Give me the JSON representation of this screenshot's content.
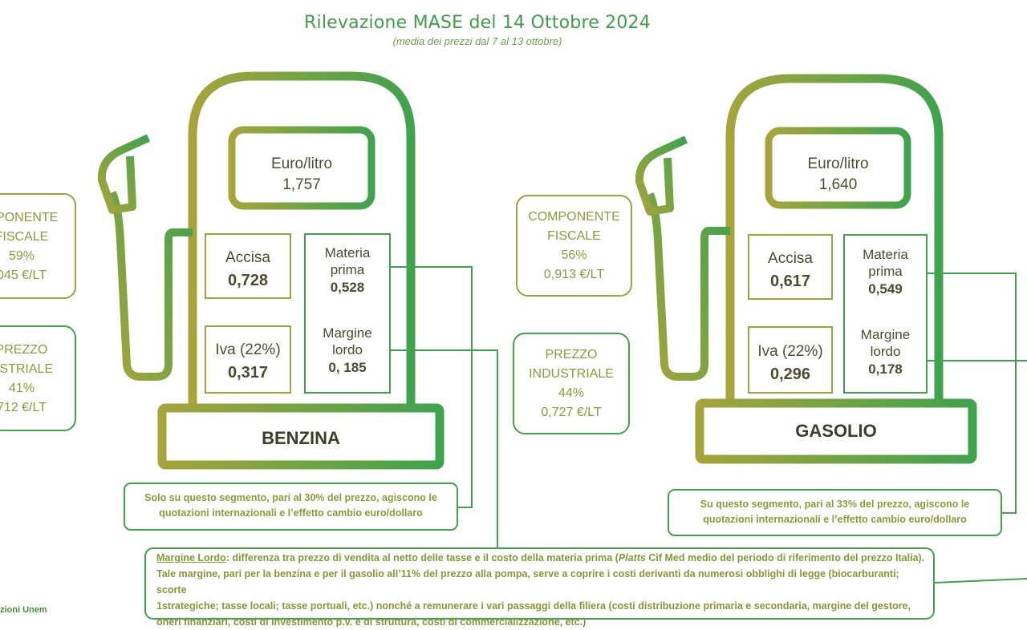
{
  "header": {
    "title": "Rilevazione MASE del 14 Ottobre 2024",
    "subtitle": "(media dei prezzi dal 7 al 13 ottobre)"
  },
  "colors": {
    "green": "#3fa34d",
    "olive": "#9aa53a",
    "text": "#4d4d2e"
  },
  "benzina": {
    "name": "BENZINA",
    "unit_label": "Euro/litro",
    "price": "1,757",
    "accisa_label": "Accisa",
    "accisa_value": "0,728",
    "iva_label": "Iva (22%)",
    "iva_value": "0,317",
    "materia_label_1": "Materia",
    "materia_label_2": "prima",
    "materia_value": "0,528",
    "margine_label_1": "Margine",
    "margine_label_2": "lordo",
    "margine_value": "0, 185",
    "fiscale_line1": "MPONENTE",
    "fiscale_line2": "FISCALE",
    "fiscale_pct": "59%",
    "fiscale_eur": "045 €/LT",
    "industriale_line1": "PREZZO",
    "industriale_line2": "USTRIALE",
    "industriale_pct": "41%",
    "industriale_eur": "712 €/LT",
    "note_line1": "Solo su questo segmento, pari al 30% del prezzo, agiscono le",
    "note_line2": "quotazioni internazionali e l’effetto cambio euro/dollaro"
  },
  "gasolio": {
    "name": "GASOLIO",
    "unit_label": "Euro/litro",
    "price": "1,640",
    "accisa_label": "Accisa",
    "accisa_value": "0,617",
    "iva_label": "Iva (22%)",
    "iva_value": "0,296",
    "materia_label_1": "Materia",
    "materia_label_2": "prima",
    "materia_value": "0,549",
    "margine_label_1": "Margine",
    "margine_label_2": "lordo",
    "margine_value": "0,178",
    "fiscale_line1": "COMPONENTE",
    "fiscale_line2": "FISCALE",
    "fiscale_pct": "56%",
    "fiscale_eur": "0,913 €/LT",
    "industriale_line1": "PREZZO",
    "industriale_line2": "INDUSTRIALE",
    "industriale_pct": "44%",
    "industriale_eur": "0,727 €/LT",
    "note_line1": "Su questo segmento, pari al 33% del prezzo, agiscono le",
    "note_line2": "quotazioni internazionali e l’effetto cambio euro/dollaro"
  },
  "definition": {
    "term": "Margine Lordo",
    "part1": ": differenza tra prezzo di vendita al netto delle tasse e il costo della materia prima (",
    "platts": "Platts",
    "part2": " Cif Med medio del periodo di riferimento del prezzo Italia).",
    "line2": "Tale margine, pari per la benzina e per il gasolio all’11% del prezzo alla pompa, serve a coprire i costi derivanti da numerosi obblighi di legge (biocarburanti; scorte",
    "line3": "1strategiche; tasse locali; tasse portuali, etc.) nonché a remunerare i vari passaggi della filiera (costi distribuzione primaria e secondaria, margine del gestore,",
    "line4": "oneri finanziari, costi di investimento p.v. e di struttura, costi di commercializzazione, etc.)"
  },
  "footer": {
    "source": "zioni Unem"
  }
}
